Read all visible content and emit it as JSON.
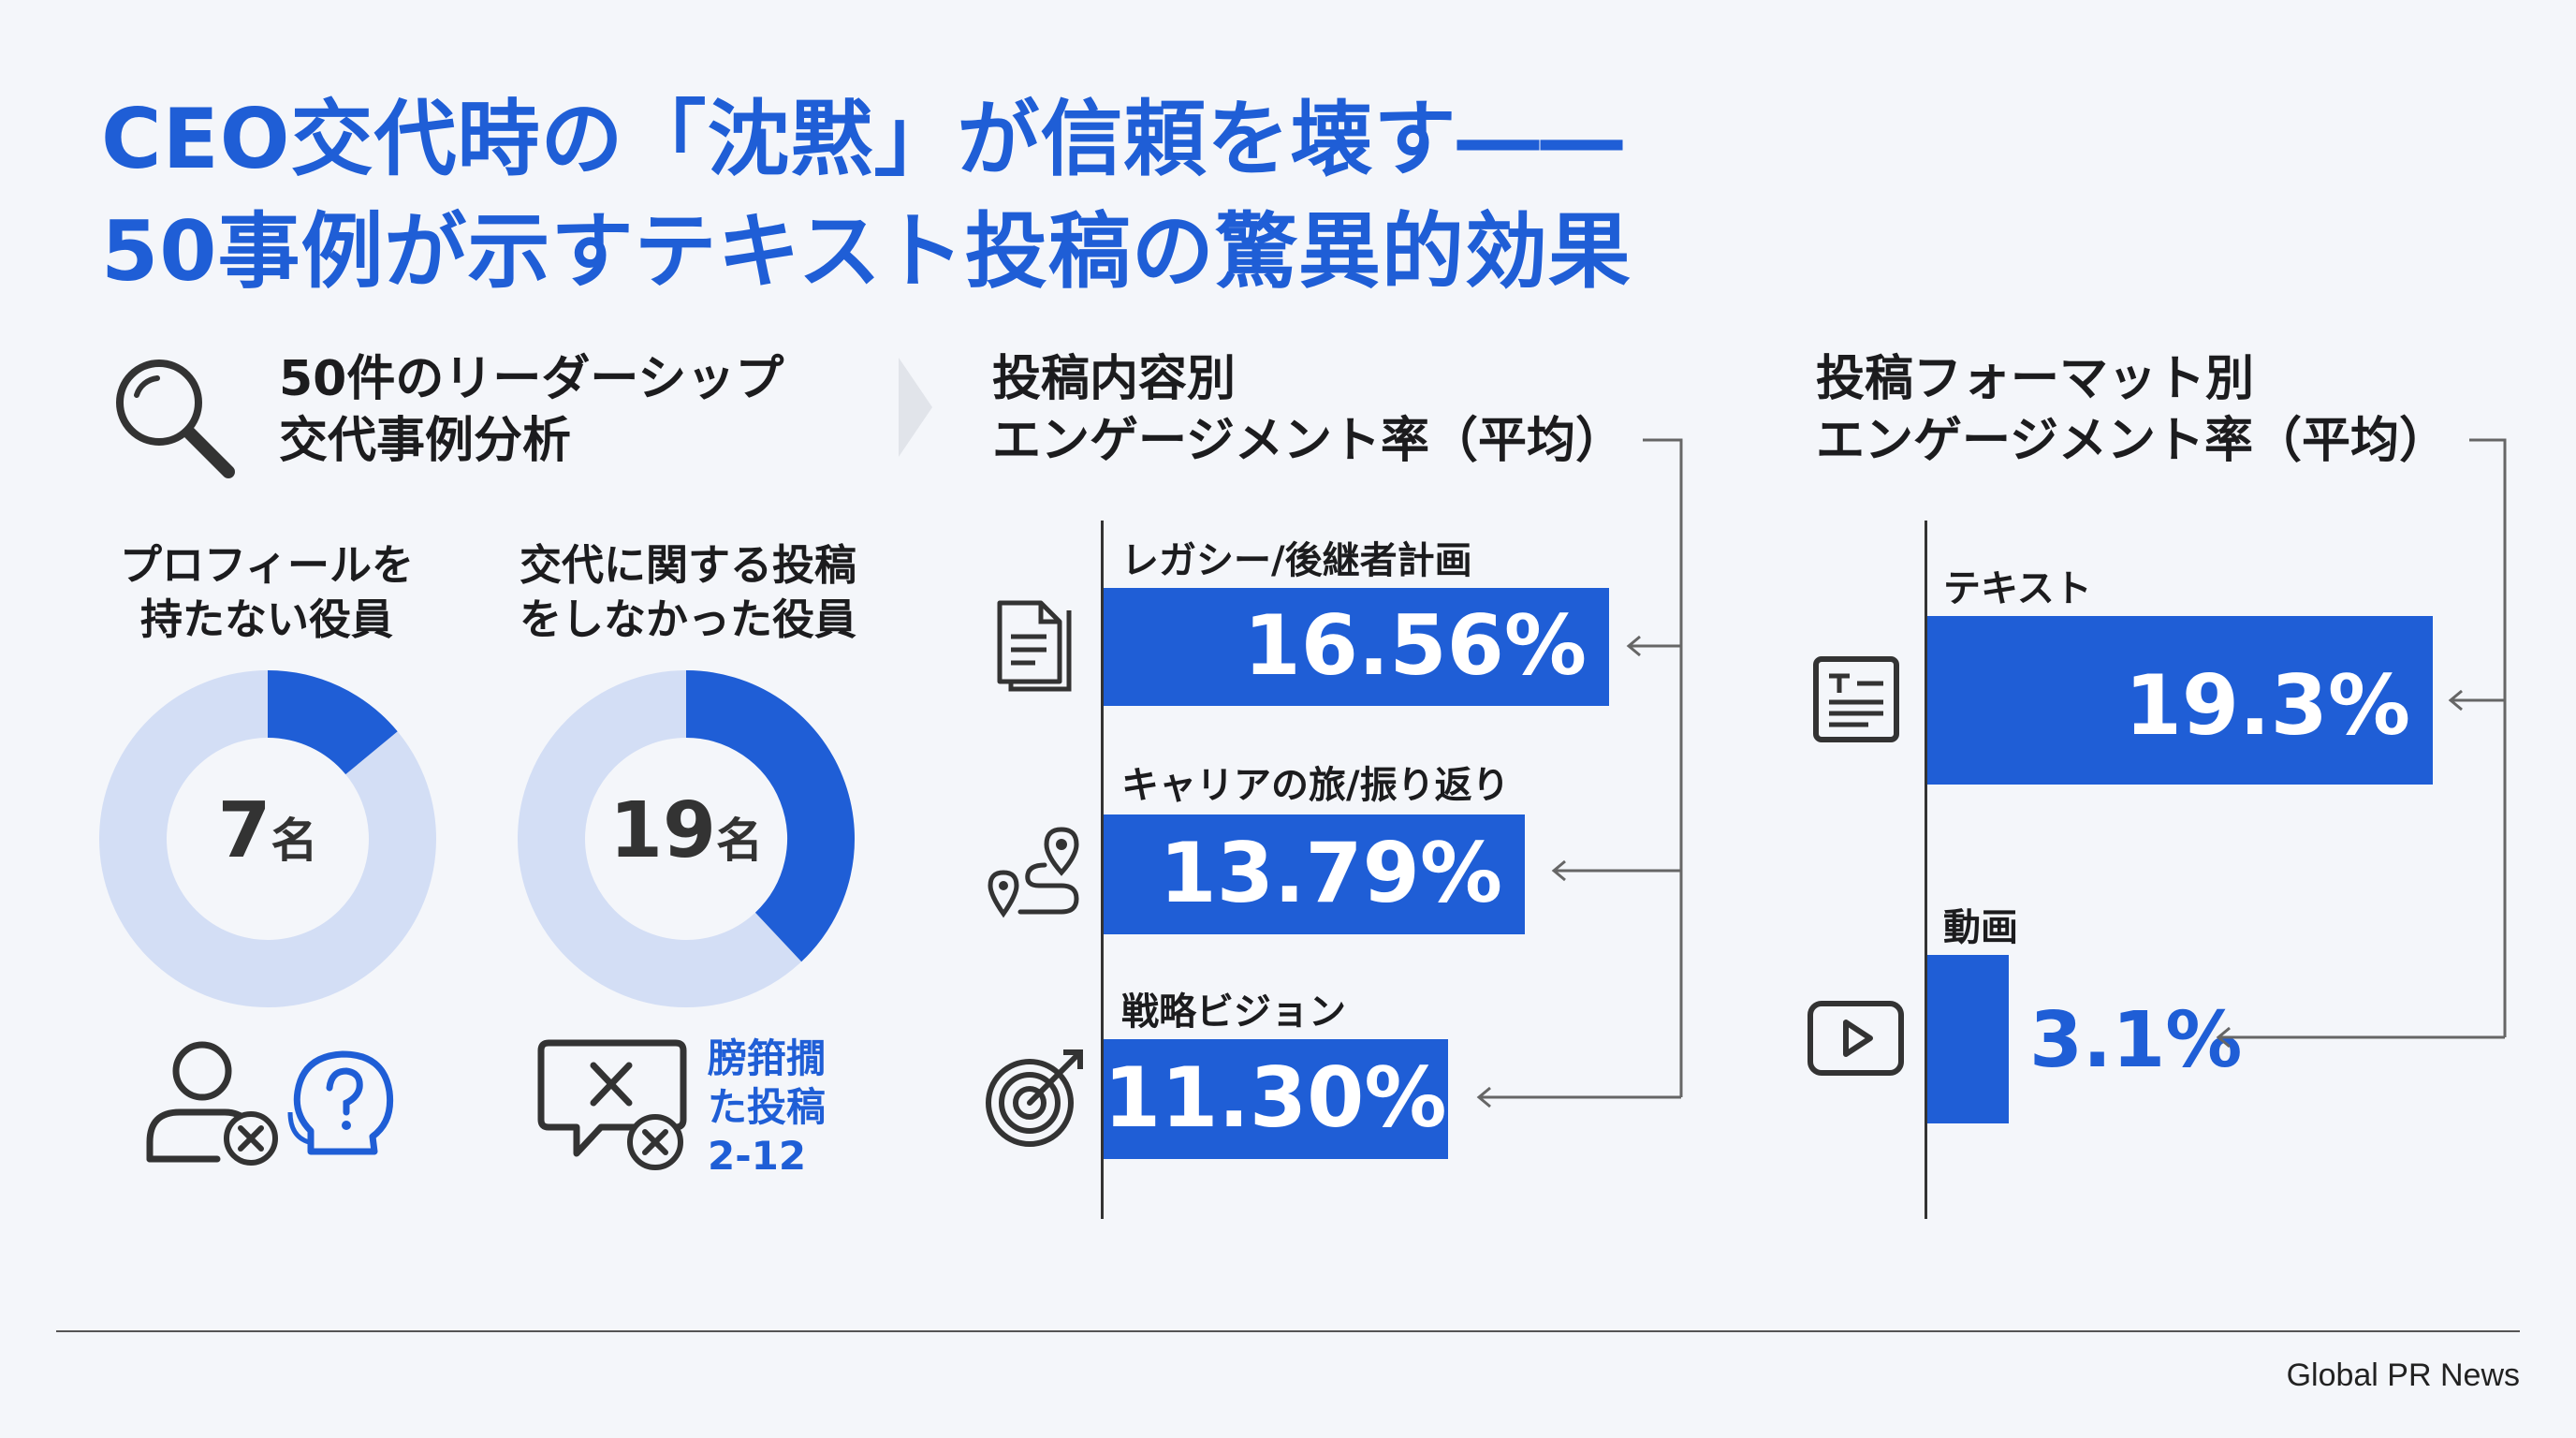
{
  "title": {
    "line1": "CEO交代時の「沈黙」が信頼を壊す――",
    "line2": "50事例が示すテキスト投稿の驚異的効果"
  },
  "analysis": {
    "header_line1": "50件のリーダーシップ",
    "header_line2": "交代事例分析",
    "no_profile": {
      "label_line1": "プロフィールを",
      "label_line2": "持たない役員",
      "value": "7",
      "unit": "名",
      "fraction": 0.14
    },
    "no_post": {
      "label_line1": "交代に関する投稿",
      "label_line2": "をしなかった役員",
      "value": "19",
      "unit": "名",
      "fraction": 0.38
    },
    "note_line1": "膀箝撊",
    "note_line2": "た投稿",
    "note_line3": "2-12"
  },
  "colors": {
    "accent": "#1f5ed6",
    "ring": "#d3def5",
    "text": "#1c1c1e"
  },
  "chart_data": [
    {
      "type": "bar",
      "title_line1": "投稿内容別",
      "title_line2": "エンゲージメント率（平均）",
      "categories": [
        "レガシー/後継者計画",
        "キャリアの旅/振り返り",
        "戦略ビジョン"
      ],
      "values": [
        16.56,
        13.79,
        11.3
      ],
      "labels": [
        "16.56%",
        "13.79%",
        "11.30%"
      ],
      "icons": [
        "document-icon",
        "route-pin-icon",
        "target-arrow-icon"
      ],
      "xlim": [
        0,
        16.56
      ]
    },
    {
      "type": "bar",
      "title_line1": "投稿フォーマット別",
      "title_line2": "エンゲージメント率（平均）",
      "categories": [
        "テキスト",
        "動画"
      ],
      "values": [
        19.3,
        3.1
      ],
      "labels": [
        "19.3%",
        "3.1%"
      ],
      "icons": [
        "text-document-icon",
        "video-play-icon"
      ],
      "xlim": [
        0,
        19.3
      ]
    }
  ],
  "footer": "Global PR News"
}
